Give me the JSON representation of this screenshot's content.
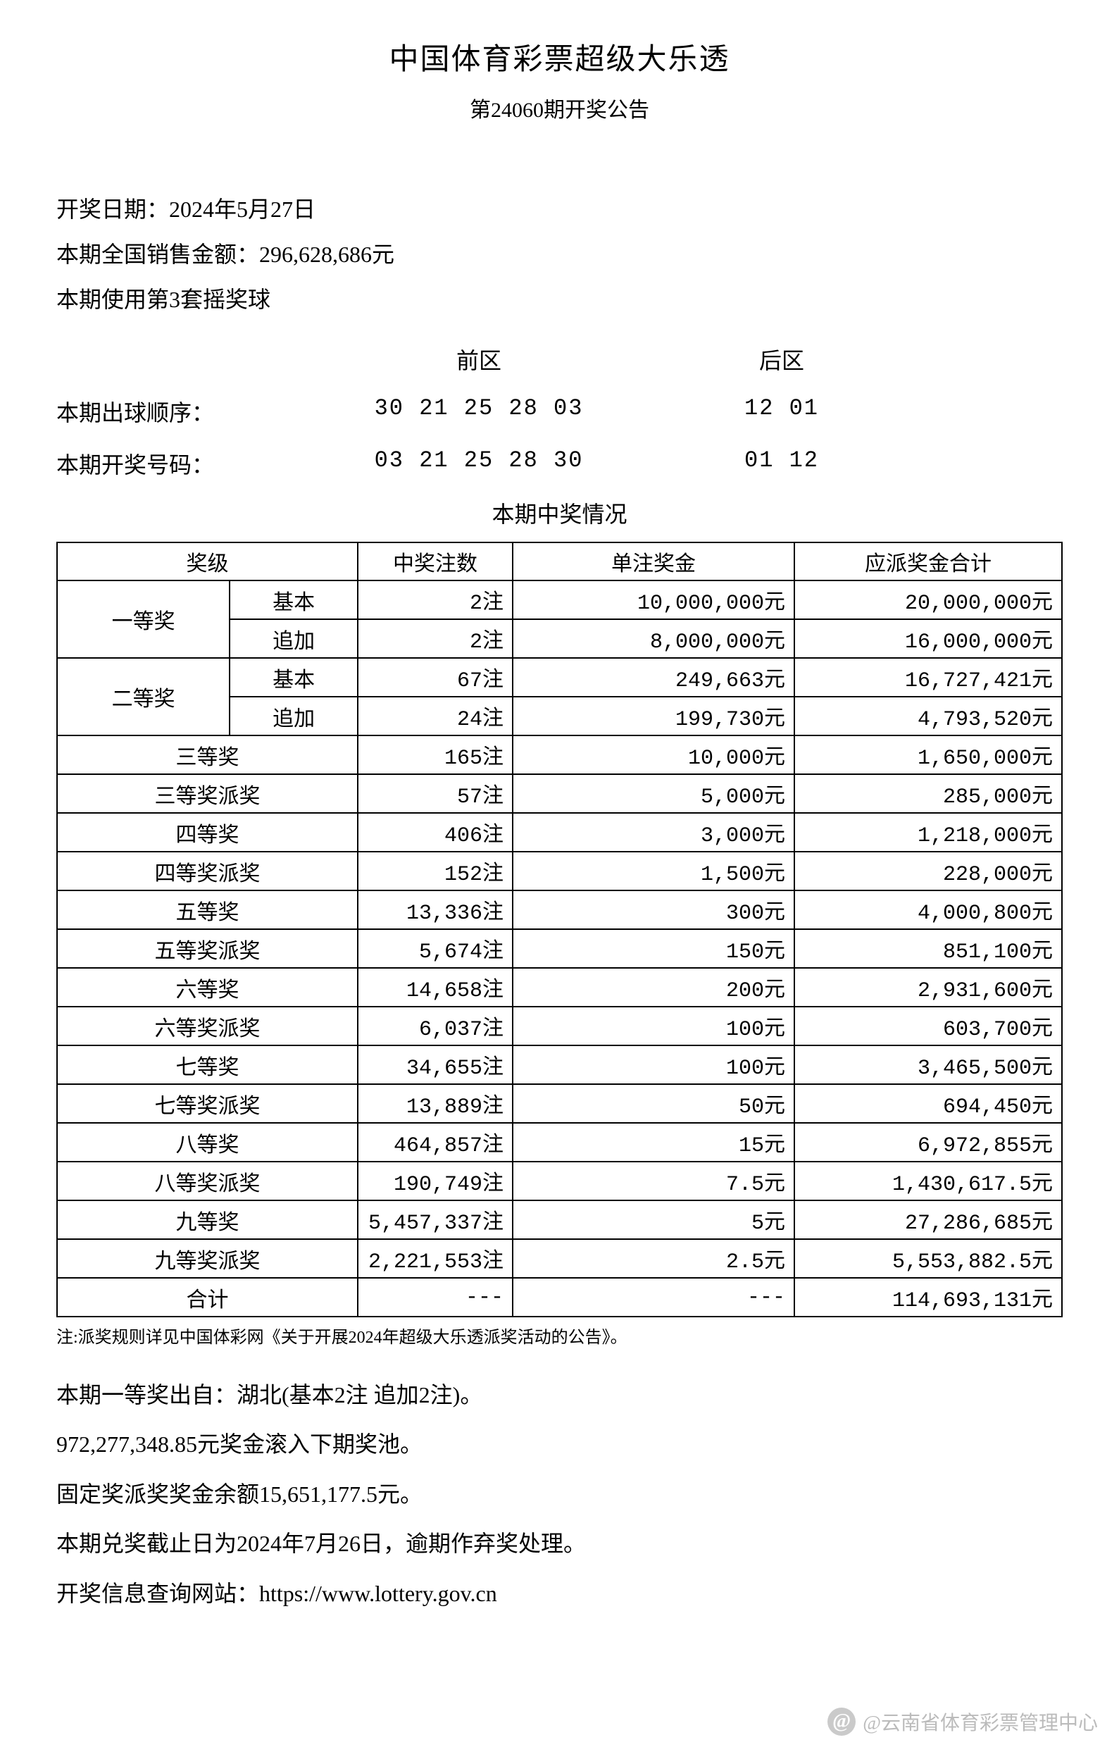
{
  "header": {
    "title": "中国体育彩票超级大乐透",
    "subtitle": "第24060期开奖公告"
  },
  "info": {
    "draw_date_label": "开奖日期：2024年5月27日",
    "sales_label": "本期全国销售金额：296,628,686元",
    "ball_set_label": "本期使用第3套摇奖球"
  },
  "numbers": {
    "front_header": "前区",
    "back_header": "后区",
    "order_label": "本期出球顺序：",
    "order_front": "30 21 25 28 03",
    "order_back": "12 01",
    "win_label": "本期开奖号码：",
    "win_front": "03 21 25 28 30",
    "win_back": "01 12"
  },
  "prize_section_title": "本期中奖情况",
  "table": {
    "columns": {
      "level": "奖级",
      "count": "中奖注数",
      "per": "单注奖金",
      "total": "应派奖金合计"
    },
    "first": {
      "label": "一等奖",
      "basic_label": "基本",
      "extra_label": "追加",
      "basic_count": "2注",
      "basic_per": "10,000,000元",
      "basic_total": "20,000,000元",
      "extra_count": "2注",
      "extra_per": "8,000,000元",
      "extra_total": "16,000,000元"
    },
    "second": {
      "label": "二等奖",
      "basic_label": "基本",
      "extra_label": "追加",
      "basic_count": "67注",
      "basic_per": "249,663元",
      "basic_total": "16,727,421元",
      "extra_count": "24注",
      "extra_per": "199,730元",
      "extra_total": "4,793,520元"
    },
    "rows": [
      {
        "level": "三等奖",
        "count": "165注",
        "per": "10,000元",
        "total": "1,650,000元"
      },
      {
        "level": "三等奖派奖",
        "count": "57注",
        "per": "5,000元",
        "total": "285,000元"
      },
      {
        "level": "四等奖",
        "count": "406注",
        "per": "3,000元",
        "total": "1,218,000元"
      },
      {
        "level": "四等奖派奖",
        "count": "152注",
        "per": "1,500元",
        "total": "228,000元"
      },
      {
        "level": "五等奖",
        "count": "13,336注",
        "per": "300元",
        "total": "4,000,800元"
      },
      {
        "level": "五等奖派奖",
        "count": "5,674注",
        "per": "150元",
        "total": "851,100元"
      },
      {
        "level": "六等奖",
        "count": "14,658注",
        "per": "200元",
        "total": "2,931,600元"
      },
      {
        "level": "六等奖派奖",
        "count": "6,037注",
        "per": "100元",
        "total": "603,700元"
      },
      {
        "level": "七等奖",
        "count": "34,655注",
        "per": "100元",
        "total": "3,465,500元"
      },
      {
        "level": "七等奖派奖",
        "count": "13,889注",
        "per": "50元",
        "total": "694,450元"
      },
      {
        "level": "八等奖",
        "count": "464,857注",
        "per": "15元",
        "total": "6,972,855元"
      },
      {
        "level": "八等奖派奖",
        "count": "190,749注",
        "per": "7.5元",
        "total": "1,430,617.5元"
      },
      {
        "level": "九等奖",
        "count": "5,457,337注",
        "per": "5元",
        "total": "27,286,685元"
      },
      {
        "level": "九等奖派奖",
        "count": "2,221,553注",
        "per": "2.5元",
        "total": "5,553,882.5元"
      }
    ],
    "sum": {
      "label": "合计",
      "count": "---",
      "per": "---",
      "total": "114,693,131元"
    }
  },
  "note": "注:派奖规则详见中国体彩网《关于开展2024年超级大乐透派奖活动的公告》。",
  "footer": {
    "origin": "本期一等奖出自：湖北(基本2注 追加2注)。",
    "rollover": "972,277,348.85元奖金滚入下期奖池。",
    "fixed_balance": "固定奖派奖奖金余额15,651,177.5元。",
    "deadline": "本期兑奖截止日为2024年7月26日，逾期作弃奖处理。",
    "website": "开奖信息查询网站：https://www.lottery.gov.cn"
  },
  "watermark": "@云南省体育彩票管理中心"
}
